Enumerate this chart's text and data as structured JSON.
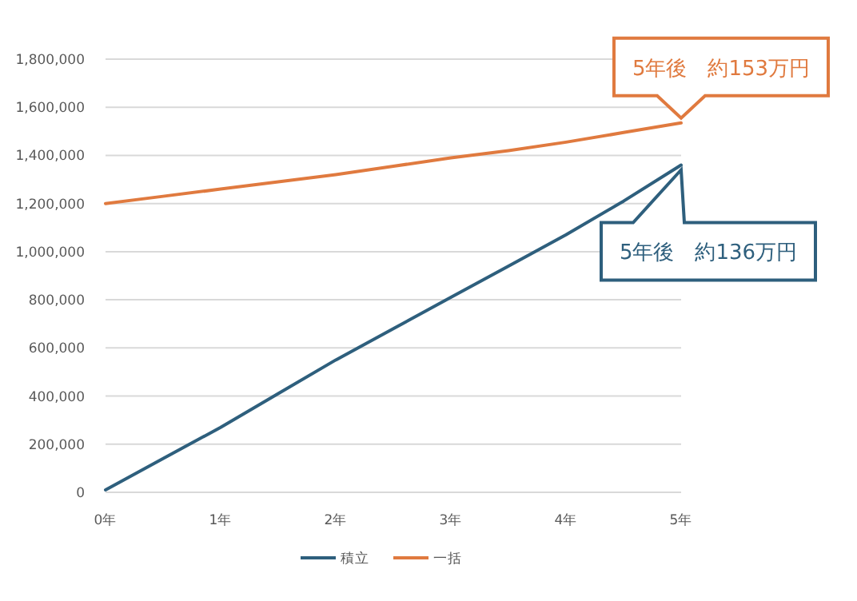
{
  "chart_data": {
    "type": "line",
    "x": [
      0,
      0.5,
      1,
      1.5,
      2,
      2.5,
      3,
      3.5,
      4,
      4.5,
      5
    ],
    "xlim": [
      0,
      5
    ],
    "xticks": [
      {
        "value": 0,
        "label": "0年"
      },
      {
        "value": 1,
        "label": "1年"
      },
      {
        "value": 2,
        "label": "2年"
      },
      {
        "value": 3,
        "label": "3年"
      },
      {
        "value": 4,
        "label": "4年"
      },
      {
        "value": 5,
        "label": "5年"
      }
    ],
    "ylim": [
      0,
      1800000
    ],
    "yticks": [
      {
        "value": 0,
        "label": "0"
      },
      {
        "value": 200000,
        "label": "200,000"
      },
      {
        "value": 400000,
        "label": "400,000"
      },
      {
        "value": 600000,
        "label": "600,000"
      },
      {
        "value": 800000,
        "label": "800,000"
      },
      {
        "value": 1000000,
        "label": "1,000,000"
      },
      {
        "value": 1200000,
        "label": "1,200,000"
      },
      {
        "value": 1400000,
        "label": "1,400,000"
      },
      {
        "value": 1600000,
        "label": "1,600,000"
      },
      {
        "value": 1800000,
        "label": "1,800,000"
      }
    ],
    "grid": "y",
    "legend": "bottom",
    "series": [
      {
        "name": "積立",
        "color": "#2e5f7d",
        "values": [
          10000,
          140000,
          270000,
          410000,
          550000,
          680000,
          810000,
          940000,
          1070000,
          1210000,
          1360000
        ]
      },
      {
        "name": "一括",
        "color": "#e07a3f",
        "values": [
          1200000,
          1230000,
          1260000,
          1290000,
          1320000,
          1355000,
          1390000,
          1420000,
          1455000,
          1495000,
          1535000
        ]
      }
    ],
    "annotations": [
      "5年後　約153万円",
      "5年後　約136万円"
    ]
  }
}
